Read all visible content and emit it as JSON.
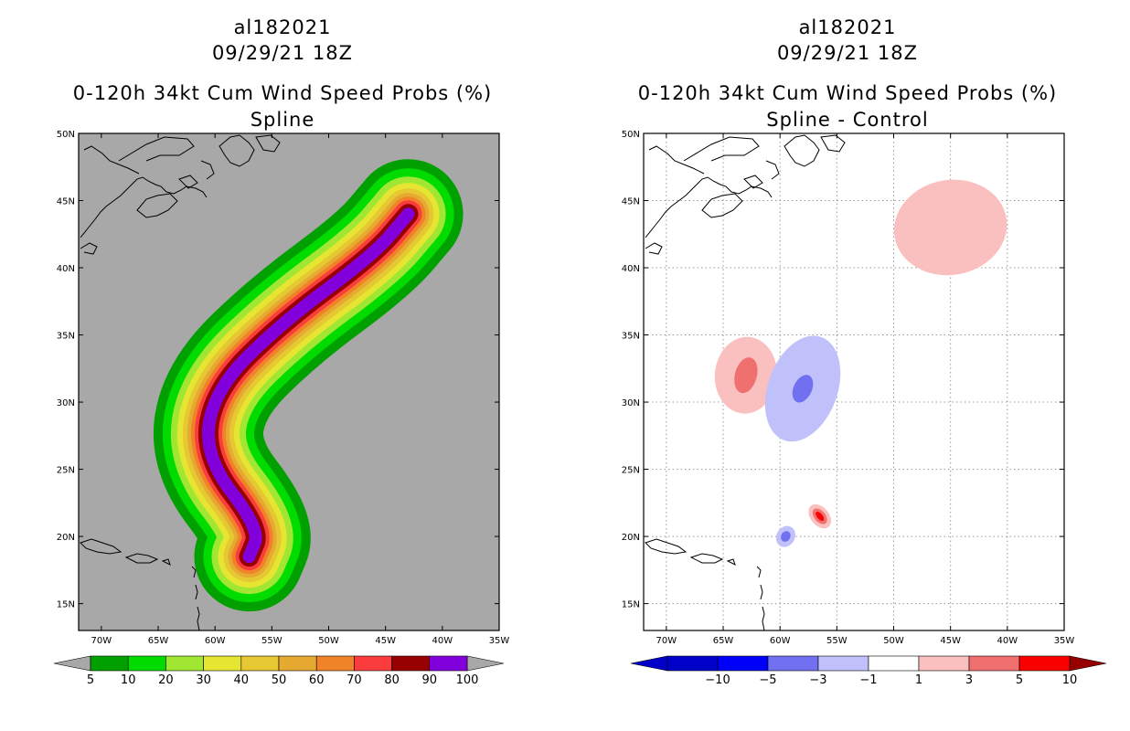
{
  "colors": {
    "land_gray": "#a8a8a8",
    "shades": [
      "#00a000",
      "#00dc00",
      "#a0e632",
      "#e6e632",
      "#e6c832",
      "#e6aa32",
      "#f08228",
      "#fa3c3c",
      "#960000",
      "#8200dc"
    ],
    "diff": {
      "neg10": "#0000c8",
      "neg5": "#0000fa",
      "neg3": "#7070f0",
      "neg1": "#c0c0fa",
      "zero": "#ffffff",
      "pos1": "#fac0c0",
      "pos3": "#f07070",
      "pos5": "#fa0000",
      "pos10": "#960000"
    }
  },
  "chart_data": [
    {
      "type": "contour",
      "title": [
        "al182021",
        "09/29/21 18Z",
        "0-120h 34kt Cum Wind Speed Probs (%)",
        "Spline"
      ],
      "xlim": [
        -72,
        -35
      ],
      "ylim": [
        13,
        50
      ],
      "xticks": [
        "70W",
        "65W",
        "60W",
        "55W",
        "50W",
        "45W",
        "40W",
        "35W"
      ],
      "yticks": [
        "15N",
        "20N",
        "25N",
        "30N",
        "35N",
        "40N",
        "45N",
        "50N"
      ],
      "contour_levels": [
        5,
        10,
        20,
        30,
        40,
        50,
        60,
        70,
        80,
        90,
        100
      ],
      "colorbar_labels": [
        "5",
        "10",
        "20",
        "30",
        "40",
        "50",
        "60",
        "70",
        "80",
        "90",
        "100"
      ],
      "track": [
        [
          -57,
          18.5
        ],
        [
          -56,
          20.5
        ],
        [
          -61,
          26
        ],
        [
          -60,
          31
        ],
        [
          -54,
          36
        ],
        [
          -46,
          41
        ],
        [
          -43,
          44
        ]
      ],
      "colorbar_style": "horizontal, below map"
    },
    {
      "type": "contour",
      "title": [
        "al182021",
        "09/29/21 18Z",
        "0-120h 34kt Cum Wind Speed Probs (%)",
        "Spline - Control"
      ],
      "xlim": [
        -72,
        -35
      ],
      "ylim": [
        13,
        50
      ],
      "xticks": [
        "70W",
        "65W",
        "60W",
        "55W",
        "50W",
        "45W",
        "40W",
        "35W"
      ],
      "yticks": [
        "15N",
        "20N",
        "25N",
        "30N",
        "35N",
        "40N",
        "45N",
        "50N"
      ],
      "grid": true,
      "contour_levels": [
        -10,
        -5,
        -3,
        -1,
        1,
        3,
        5,
        10
      ],
      "colorbar_labels": [
        "-10",
        "-5",
        "-3",
        "-1",
        "1",
        "3",
        "5",
        "10"
      ],
      "features": [
        {
          "sign": "positive",
          "max_level": 1,
          "center": [
            -45,
            43
          ]
        },
        {
          "sign": "positive",
          "max_level": 3,
          "center": [
            -63,
            32
          ]
        },
        {
          "sign": "negative",
          "max_level": -3,
          "center": [
            -58,
            31
          ]
        },
        {
          "sign": "negative",
          "max_level": -3,
          "center": [
            -59.5,
            20
          ]
        },
        {
          "sign": "positive",
          "max_level": 5,
          "center": [
            -56.5,
            21.5
          ]
        }
      ]
    }
  ]
}
